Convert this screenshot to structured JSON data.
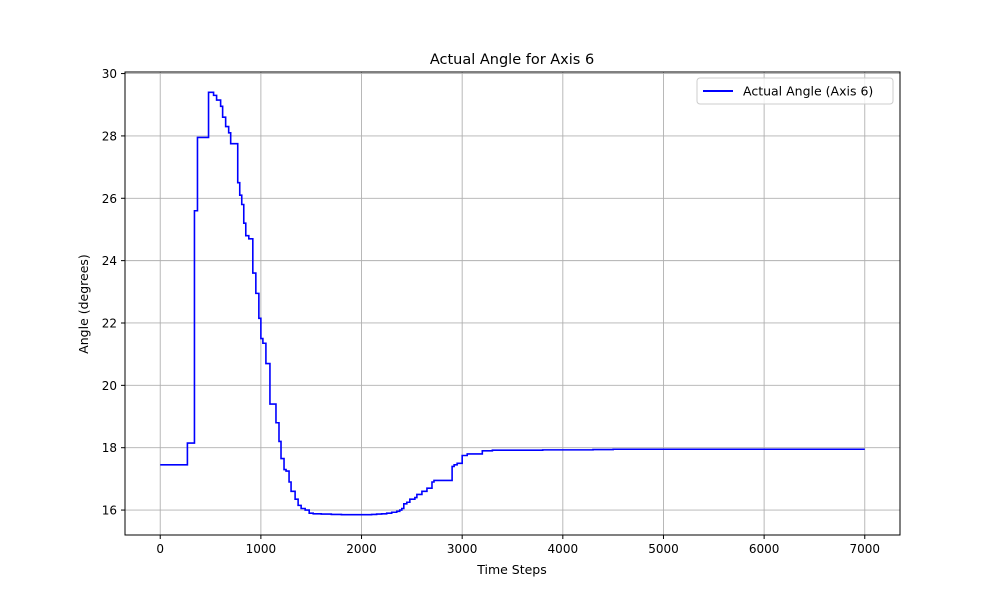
{
  "chart_data": {
    "type": "line",
    "title": "Actual Angle for Axis 6",
    "xlabel": "Time Steps",
    "ylabel": "Angle (degrees)",
    "xlim": [
      -350,
      7350
    ],
    "ylim": [
      15.2,
      30.05
    ],
    "xticks": [
      0,
      1000,
      2000,
      3000,
      4000,
      5000,
      6000,
      7000
    ],
    "yticks": [
      16,
      18,
      20,
      22,
      24,
      26,
      28,
      30
    ],
    "grid": true,
    "legend": {
      "position": "top-right"
    },
    "series": [
      {
        "name": "Actual Angle (Axis 6)",
        "color": "#0000ff",
        "line_style": "step",
        "x": [
          0,
          270,
          340,
          370,
          480,
          530,
          560,
          600,
          620,
          650,
          680,
          700,
          770,
          790,
          810,
          830,
          850,
          880,
          920,
          950,
          980,
          1000,
          1020,
          1050,
          1090,
          1150,
          1180,
          1200,
          1230,
          1250,
          1280,
          1300,
          1340,
          1370,
          1400,
          1440,
          1480,
          1520,
          1600,
          1700,
          1800,
          1900,
          2000,
          2100,
          2150,
          2200,
          2250,
          2300,
          2350,
          2380,
          2400,
          2420,
          2450,
          2480,
          2530,
          2550,
          2600,
          2650,
          2700,
          2720,
          2800,
          2900,
          2920,
          2950,
          3000,
          3050,
          3100,
          3200,
          3300,
          3400,
          3600,
          3800,
          4000,
          4300,
          4500,
          5000,
          5500,
          6000,
          6500,
          7000
        ],
        "y": [
          17.45,
          18.15,
          25.6,
          27.95,
          29.4,
          29.3,
          29.15,
          28.95,
          28.6,
          28.3,
          28.1,
          27.75,
          26.5,
          26.1,
          25.8,
          25.2,
          24.8,
          24.7,
          23.6,
          22.95,
          22.15,
          21.5,
          21.35,
          20.7,
          19.4,
          18.8,
          18.2,
          17.65,
          17.3,
          17.25,
          16.9,
          16.6,
          16.35,
          16.15,
          16.05,
          16.0,
          15.9,
          15.88,
          15.87,
          15.86,
          15.85,
          15.85,
          15.85,
          15.86,
          15.87,
          15.88,
          15.9,
          15.93,
          15.96,
          16.0,
          16.05,
          16.2,
          16.25,
          16.35,
          16.4,
          16.5,
          16.6,
          16.7,
          16.9,
          16.95,
          16.95,
          17.4,
          17.45,
          17.5,
          17.75,
          17.8,
          17.8,
          17.9,
          17.92,
          17.92,
          17.92,
          17.93,
          17.93,
          17.94,
          17.95,
          17.95,
          17.95,
          17.95,
          17.95,
          17.95
        ]
      }
    ]
  }
}
